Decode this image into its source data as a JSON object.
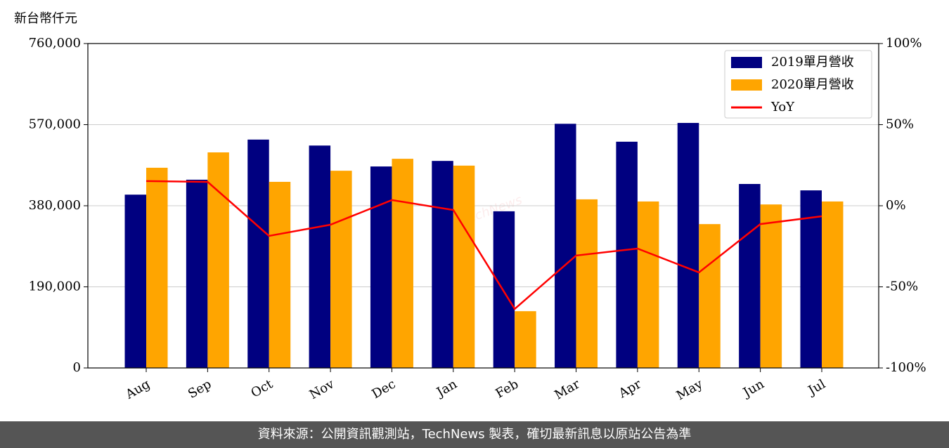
{
  "chart_data": {
    "type": "bar-line",
    "ylabel": "新台幣仟元",
    "watermark": "TechNews",
    "footer": "資料來源：公開資訊觀測站，TechNews 製表，確切最新訊息以原站公告為準",
    "categories": [
      "Aug",
      "Sep",
      "Oct",
      "Nov",
      "Dec",
      "Jan",
      "Feb",
      "Mar",
      "Apr",
      "May",
      "Jun",
      "Jul"
    ],
    "series": [
      {
        "name": "2019單月營收",
        "type": "bar",
        "color": "#000080",
        "values": [
          406000,
          441000,
          535000,
          521000,
          472000,
          485000,
          367000,
          572000,
          530000,
          574000,
          431000,
          416000
        ]
      },
      {
        "name": "2020單月營收",
        "type": "bar",
        "color": "#ffa500",
        "values": [
          469000,
          505000,
          436000,
          462000,
          490000,
          474000,
          133000,
          395000,
          390000,
          337000,
          383000,
          390000
        ]
      },
      {
        "name": "YoY",
        "type": "line",
        "axis": "y2",
        "color": "#ff0000",
        "values": [
          15.2,
          14.7,
          -18.6,
          -11.7,
          3.5,
          -2.6,
          -63.6,
          -30.7,
          -26.4,
          -41.1,
          -11.3,
          -6.5
        ]
      }
    ],
    "ylim": [
      0,
      760000
    ],
    "yticks": [
      0,
      {
        "value": 190000,
        "label": "190,000"
      },
      {
        "value": 380000,
        "label": "380,000"
      },
      {
        "value": 570000,
        "label": "570,000"
      },
      {
        "value": 760000,
        "label": "760,000"
      }
    ],
    "y2lim": [
      -100,
      100
    ],
    "y2ticks": [
      {
        "value": -100,
        "label": "-100%"
      },
      {
        "value": -50,
        "label": "-50%"
      },
      {
        "value": 0,
        "label": "0%"
      },
      {
        "value": 50,
        "label": "50%"
      },
      {
        "value": 100,
        "label": "100%"
      }
    ],
    "grid": true,
    "legend": "upper right"
  }
}
